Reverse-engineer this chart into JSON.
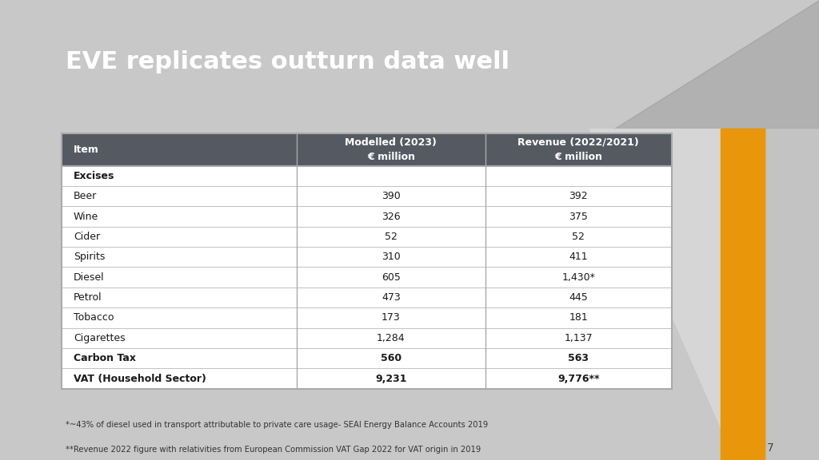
{
  "title": "EVE replicates outturn data well",
  "title_color": "#ffffff",
  "title_bg_color": "#3d4147",
  "header_bg_color": "#555a62",
  "header_text_color": "#ffffff",
  "col_headers": [
    "Item",
    "Modelled (2023)\n€ million",
    "Revenue (2022/2021)\n€ million"
  ],
  "rows": [
    {
      "item": "Excises",
      "modelled": "",
      "revenue": "",
      "bold": true,
      "category": true
    },
    {
      "item": "Beer",
      "modelled": "390",
      "revenue": "392",
      "bold": false,
      "category": false
    },
    {
      "item": "Wine",
      "modelled": "326",
      "revenue": "375",
      "bold": false,
      "category": false
    },
    {
      "item": "Cider",
      "modelled": "52",
      "revenue": "52",
      "bold": false,
      "category": false
    },
    {
      "item": "Spirits",
      "modelled": "310",
      "revenue": "411",
      "bold": false,
      "category": false
    },
    {
      "item": "Diesel",
      "modelled": "605",
      "revenue": "1,430*",
      "bold": false,
      "category": false
    },
    {
      "item": "Petrol",
      "modelled": "473",
      "revenue": "445",
      "bold": false,
      "category": false
    },
    {
      "item": "Tobacco",
      "modelled": "173",
      "revenue": "181",
      "bold": false,
      "category": false
    },
    {
      "item": "Cigarettes",
      "modelled": "1,284",
      "revenue": "1,137",
      "bold": false,
      "category": false
    },
    {
      "item": "Carbon Tax",
      "modelled": "560",
      "revenue": "563",
      "bold": true,
      "category": false
    },
    {
      "item": "VAT (Household Sector)",
      "modelled": "9,231",
      "revenue": "9,776**",
      "bold": true,
      "category": false
    }
  ],
  "footnote1": "*~43% of diesel used in transport attributable to private care usage- SEAI Energy Balance Accounts 2019",
  "footnote2": "**Revenue 2022 figure with relativities from European Commission VAT Gap 2022 for VAT origin in 2019",
  "page_number": "7",
  "slide_bg_color": "#c8c8c8",
  "title_bg_color2": "#3d4147",
  "table_bg_color": "#ffffff",
  "row_alt_color": "#f5f5f5",
  "row_main_color": "#ffffff",
  "border_color": "#aaaaaa",
  "orange_color": "#e8960a",
  "gray_shape_color": "#c0c0c0"
}
